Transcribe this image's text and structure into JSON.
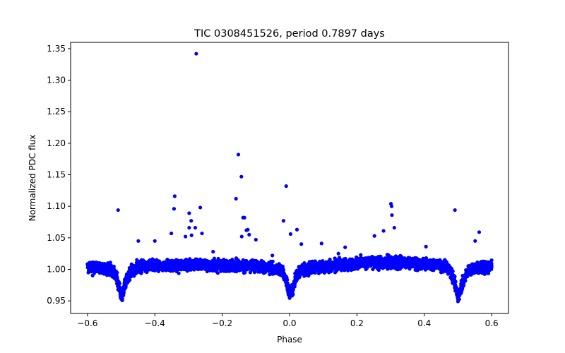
{
  "chart_data": {
    "type": "scatter",
    "title": "TIC 0308451526, period 0.7897 days",
    "xlabel": "Phase",
    "ylabel": "Normalized PDC flux",
    "xlim": [
      -0.65,
      0.65
    ],
    "ylim": [
      0.93,
      1.36
    ],
    "x_ticks": [
      -0.6,
      -0.4,
      -0.2,
      0.0,
      0.2,
      0.4,
      0.6
    ],
    "x_tick_labels": [
      "−0.6",
      "−0.4",
      "−0.2",
      "0.0",
      "0.2",
      "0.4",
      "0.6"
    ],
    "y_ticks": [
      0.95,
      1.0,
      1.05,
      1.1,
      1.15,
      1.2,
      1.25,
      1.3,
      1.35
    ],
    "y_tick_labels": [
      "0.95",
      "1.00",
      "1.05",
      "1.10",
      "1.15",
      "1.20",
      "1.25",
      "1.30",
      "1.35"
    ],
    "marker_color": "#0000ff",
    "grid": false,
    "legend": "none",
    "series": [
      {
        "marker": "circle",
        "trend": [
          [
            -0.6,
            1.004
          ],
          [
            -0.56,
            1.003
          ],
          [
            -0.53,
            1.0
          ],
          [
            -0.515,
            0.99
          ],
          [
            -0.505,
            0.968
          ],
          [
            -0.5,
            0.958
          ],
          [
            -0.495,
            0.962
          ],
          [
            -0.485,
            0.98
          ],
          [
            -0.47,
            0.996
          ],
          [
            -0.45,
            1.003
          ],
          [
            -0.4,
            1.006
          ],
          [
            -0.3,
            1.007
          ],
          [
            -0.2,
            1.006
          ],
          [
            -0.1,
            1.005
          ],
          [
            -0.05,
            1.002
          ],
          [
            -0.02,
            0.996
          ],
          [
            -0.01,
            0.982
          ],
          [
            0.0,
            0.958
          ],
          [
            0.01,
            0.97
          ],
          [
            0.02,
            0.992
          ],
          [
            0.04,
            1.0
          ],
          [
            0.1,
            1.004
          ],
          [
            0.2,
            1.01
          ],
          [
            0.3,
            1.012
          ],
          [
            0.4,
            1.008
          ],
          [
            0.47,
            1.004
          ],
          [
            0.485,
            0.988
          ],
          [
            0.495,
            0.97
          ],
          [
            0.5,
            0.958
          ],
          [
            0.505,
            0.962
          ],
          [
            0.515,
            0.98
          ],
          [
            0.53,
            0.998
          ],
          [
            0.56,
            1.003
          ],
          [
            0.6,
            1.004
          ]
        ],
        "scatter_spread": 0.008,
        "outliers": [
          [
            -0.277,
            1.342
          ],
          [
            -0.152,
            1.182
          ],
          [
            -0.143,
            1.147
          ],
          [
            -0.341,
            1.116
          ],
          [
            -0.159,
            1.112
          ],
          [
            -0.01,
            1.132
          ],
          [
            -0.509,
            1.094
          ],
          [
            -0.343,
            1.096
          ],
          [
            -0.265,
            1.098
          ],
          [
            0.301,
            1.104
          ],
          [
            0.303,
            1.1
          ],
          [
            0.491,
            1.094
          ],
          [
            -0.298,
            1.089
          ],
          [
            -0.292,
            1.077
          ],
          [
            -0.134,
            1.082
          ],
          [
            -0.138,
            1.082
          ],
          [
            -0.018,
            1.077
          ],
          [
            0.304,
            1.086
          ],
          [
            -0.28,
            1.066
          ],
          [
            -0.298,
            1.066
          ],
          [
            -0.124,
            1.063
          ],
          [
            -0.128,
            1.062
          ],
          [
            0.022,
            1.063
          ],
          [
            0.003,
            1.056
          ],
          [
            0.563,
            1.059
          ],
          [
            0.551,
            1.045
          ],
          [
            0.279,
            1.061
          ],
          [
            0.311,
            1.066
          ],
          [
            -0.26,
            1.057
          ],
          [
            -0.291,
            1.054
          ],
          [
            -0.142,
            1.052
          ],
          [
            -0.12,
            1.055
          ],
          [
            0.252,
            1.053
          ],
          [
            -0.4,
            1.045
          ],
          [
            -0.351,
            1.057
          ],
          [
            -0.309,
            1.052
          ],
          [
            -0.1,
            1.047
          ],
          [
            -0.449,
            1.045
          ],
          [
            0.035,
            1.04
          ],
          [
            0.095,
            1.041
          ],
          [
            0.165,
            1.035
          ],
          [
            0.405,
            1.036
          ],
          [
            0.145,
            1.025
          ],
          [
            -0.227,
            1.028
          ],
          [
            -0.051,
            1.022
          ]
        ]
      }
    ]
  }
}
